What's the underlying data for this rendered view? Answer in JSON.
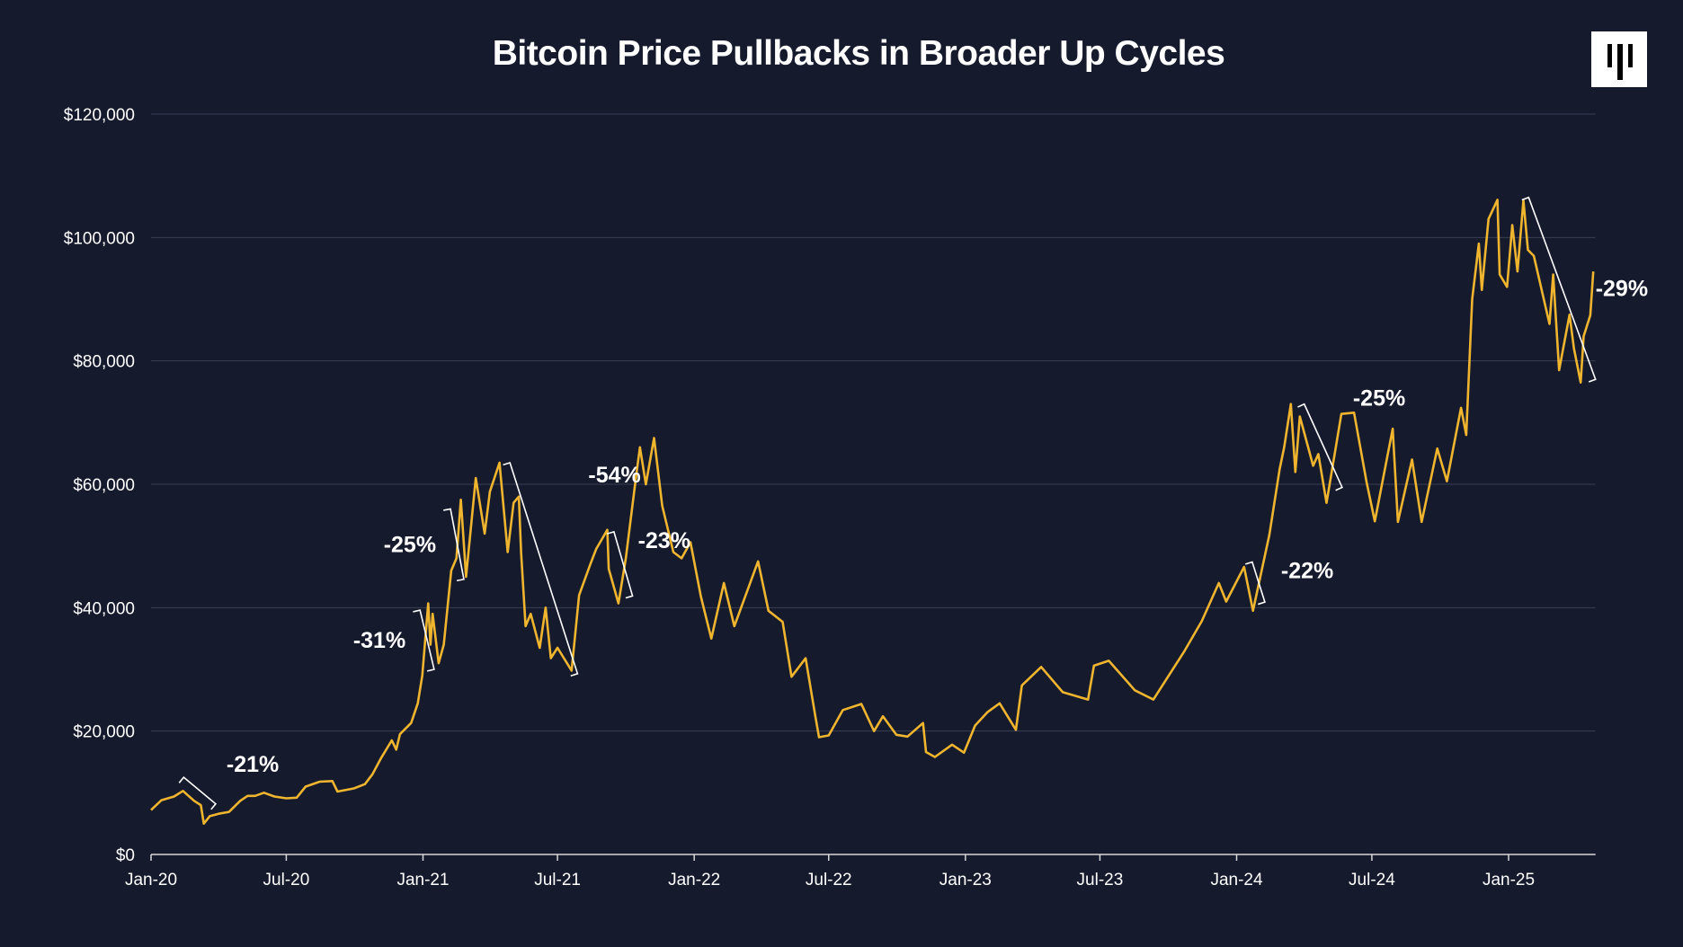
{
  "chart_data": {
    "type": "line",
    "title": "Bitcoin Price Pullbacks in Broader Up Cycles",
    "xlabel": "",
    "ylabel": "",
    "ylim": [
      0,
      120000
    ],
    "xlim": [
      "2020-01-01",
      "2025-04-28"
    ],
    "grid": true,
    "line_color": "#f0b52e",
    "background": "#151a2d",
    "y_ticks": [
      "$0",
      "$20,000",
      "$40,000",
      "$60,000",
      "$80,000",
      "$100,000",
      "$120,000"
    ],
    "y_tick_values": [
      0,
      20000,
      40000,
      60000,
      80000,
      100000,
      120000
    ],
    "x_ticks": [
      "Jan-20",
      "Jul-20",
      "Jan-21",
      "Jul-21",
      "Jan-22",
      "Jul-22",
      "Jan-23",
      "Jul-23",
      "Jan-24",
      "Jul-24",
      "Jan-25"
    ],
    "x_tick_dates": [
      "2020-01-01",
      "2020-07-01",
      "2021-01-01",
      "2021-07-01",
      "2022-01-01",
      "2022-07-01",
      "2023-01-01",
      "2023-07-01",
      "2024-01-01",
      "2024-07-01",
      "2025-01-01"
    ],
    "series": [
      {
        "points": [
          [
            "2020-01-01",
            7200
          ],
          [
            "2020-01-15",
            8800
          ],
          [
            "2020-02-01",
            9400
          ],
          [
            "2020-02-13",
            10300
          ],
          [
            "2020-02-28",
            8700
          ],
          [
            "2020-03-08",
            8000
          ],
          [
            "2020-03-12",
            5000
          ],
          [
            "2020-03-20",
            6200
          ],
          [
            "2020-04-01",
            6600
          ],
          [
            "2020-04-15",
            6900
          ],
          [
            "2020-04-30",
            8700
          ],
          [
            "2020-05-10",
            9500
          ],
          [
            "2020-05-20",
            9500
          ],
          [
            "2020-06-01",
            10000
          ],
          [
            "2020-06-15",
            9400
          ],
          [
            "2020-07-01",
            9100
          ],
          [
            "2020-07-15",
            9200
          ],
          [
            "2020-07-27",
            11000
          ],
          [
            "2020-08-15",
            11800
          ],
          [
            "2020-09-01",
            11900
          ],
          [
            "2020-09-08",
            10200
          ],
          [
            "2020-09-30",
            10700
          ],
          [
            "2020-10-15",
            11400
          ],
          [
            "2020-10-25",
            13000
          ],
          [
            "2020-11-05",
            15500
          ],
          [
            "2020-11-20",
            18500
          ],
          [
            "2020-11-26",
            17000
          ],
          [
            "2020-12-01",
            19500
          ],
          [
            "2020-12-16",
            21300
          ],
          [
            "2020-12-25",
            24500
          ],
          [
            "2020-12-31",
            29000
          ],
          [
            "2021-01-08",
            40700
          ],
          [
            "2021-01-11",
            34000
          ],
          [
            "2021-01-14",
            39000
          ],
          [
            "2021-01-22",
            31000
          ],
          [
            "2021-01-29",
            34000
          ],
          [
            "2021-02-08",
            46000
          ],
          [
            "2021-02-15",
            48000
          ],
          [
            "2021-02-21",
            57500
          ],
          [
            "2021-02-28",
            45000
          ],
          [
            "2021-03-13",
            61000
          ],
          [
            "2021-03-25",
            52000
          ],
          [
            "2021-04-01",
            58800
          ],
          [
            "2021-04-14",
            63500
          ],
          [
            "2021-04-25",
            49000
          ],
          [
            "2021-05-03",
            57000
          ],
          [
            "2021-05-10",
            58000
          ],
          [
            "2021-05-13",
            49000
          ],
          [
            "2021-05-19",
            37000
          ],
          [
            "2021-05-26",
            39000
          ],
          [
            "2021-06-07",
            33500
          ],
          [
            "2021-06-15",
            40000
          ],
          [
            "2021-06-22",
            31800
          ],
          [
            "2021-07-01",
            33500
          ],
          [
            "2021-07-20",
            29800
          ],
          [
            "2021-07-30",
            42000
          ],
          [
            "2021-08-14",
            47000
          ],
          [
            "2021-08-22",
            49500
          ],
          [
            "2021-09-06",
            52600
          ],
          [
            "2021-09-08",
            46300
          ],
          [
            "2021-09-21",
            40700
          ],
          [
            "2021-10-01",
            48000
          ],
          [
            "2021-10-15",
            61500
          ],
          [
            "2021-10-20",
            66000
          ],
          [
            "2021-10-28",
            60000
          ],
          [
            "2021-11-08",
            67500
          ],
          [
            "2021-11-19",
            56500
          ],
          [
            "2021-12-04",
            49000
          ],
          [
            "2021-12-15",
            48000
          ],
          [
            "2021-12-27",
            50600
          ],
          [
            "2022-01-10",
            41800
          ],
          [
            "2022-01-24",
            35000
          ],
          [
            "2022-02-10",
            44000
          ],
          [
            "2022-02-24",
            37000
          ],
          [
            "2022-03-28",
            47500
          ],
          [
            "2022-04-11",
            39500
          ],
          [
            "2022-04-30",
            37700
          ],
          [
            "2022-05-12",
            28800
          ],
          [
            "2022-05-31",
            31800
          ],
          [
            "2022-06-13",
            22400
          ],
          [
            "2022-06-18",
            19000
          ],
          [
            "2022-07-01",
            19300
          ],
          [
            "2022-07-20",
            23400
          ],
          [
            "2022-08-14",
            24400
          ],
          [
            "2022-08-31",
            20000
          ],
          [
            "2022-09-12",
            22400
          ],
          [
            "2022-09-30",
            19400
          ],
          [
            "2022-10-15",
            19100
          ],
          [
            "2022-11-05",
            21300
          ],
          [
            "2022-11-09",
            16600
          ],
          [
            "2022-11-21",
            15800
          ],
          [
            "2022-12-14",
            17800
          ],
          [
            "2022-12-30",
            16500
          ],
          [
            "2023-01-14",
            20900
          ],
          [
            "2023-01-31",
            23100
          ],
          [
            "2023-02-16",
            24500
          ],
          [
            "2023-03-10",
            20200
          ],
          [
            "2023-03-18",
            27400
          ],
          [
            "2023-04-13",
            30400
          ],
          [
            "2023-05-12",
            26300
          ],
          [
            "2023-06-15",
            25100
          ],
          [
            "2023-06-23",
            30600
          ],
          [
            "2023-07-13",
            31400
          ],
          [
            "2023-08-17",
            26600
          ],
          [
            "2023-09-11",
            25100
          ],
          [
            "2023-10-23",
            33000
          ],
          [
            "2023-11-15",
            37800
          ],
          [
            "2023-12-08",
            44000
          ],
          [
            "2023-12-18",
            41000
          ],
          [
            "2024-01-11",
            46600
          ],
          [
            "2024-01-23",
            39500
          ],
          [
            "2024-02-14",
            51800
          ],
          [
            "2024-02-28",
            62500
          ],
          [
            "2024-03-05",
            66000
          ],
          [
            "2024-03-14",
            73000
          ],
          [
            "2024-03-20",
            62000
          ],
          [
            "2024-03-26",
            71000
          ],
          [
            "2024-04-13",
            63000
          ],
          [
            "2024-04-20",
            64900
          ],
          [
            "2024-05-01",
            57000
          ],
          [
            "2024-05-21",
            71400
          ],
          [
            "2024-06-07",
            71600
          ],
          [
            "2024-06-24",
            60300
          ],
          [
            "2024-07-05",
            54000
          ],
          [
            "2024-07-29",
            69000
          ],
          [
            "2024-08-05",
            53900
          ],
          [
            "2024-08-24",
            64000
          ],
          [
            "2024-09-06",
            53900
          ],
          [
            "2024-09-27",
            65800
          ],
          [
            "2024-10-10",
            60500
          ],
          [
            "2024-10-29",
            72400
          ],
          [
            "2024-11-05",
            68000
          ],
          [
            "2024-11-13",
            90000
          ],
          [
            "2024-11-22",
            99000
          ],
          [
            "2024-11-26",
            91500
          ],
          [
            "2024-12-05",
            103000
          ],
          [
            "2024-12-17",
            106100
          ],
          [
            "2024-12-20",
            94000
          ],
          [
            "2024-12-30",
            92000
          ],
          [
            "2025-01-06",
            102000
          ],
          [
            "2025-01-13",
            94500
          ],
          [
            "2025-01-21",
            106000
          ],
          [
            "2025-01-27",
            98000
          ],
          [
            "2025-02-04",
            97000
          ],
          [
            "2025-02-25",
            86000
          ],
          [
            "2025-03-02",
            94000
          ],
          [
            "2025-03-10",
            78500
          ],
          [
            "2025-03-24",
            87500
          ],
          [
            "2025-03-30",
            82000
          ],
          [
            "2025-04-08",
            76500
          ],
          [
            "2025-04-12",
            84000
          ],
          [
            "2025-04-21",
            87400
          ],
          [
            "2025-04-25",
            94500
          ]
        ]
      }
    ],
    "annotations": [
      {
        "label": "-21%",
        "from": [
          "2020-02-14",
          12500
        ],
        "to": [
          "2020-03-28",
          8200
        ],
        "side": "right"
      },
      {
        "label": "-31%",
        "from": [
          "2020-12-28",
          39600
        ],
        "to": [
          "2021-01-16",
          30000
        ],
        "side": "left"
      },
      {
        "label": "-25%",
        "from": [
          "2021-02-07",
          56000
        ],
        "to": [
          "2021-02-25",
          44600
        ],
        "side": "left"
      },
      {
        "label": "-54%",
        "from": [
          "2021-04-28",
          63500
        ],
        "to": [
          "2021-07-28",
          29300
        ],
        "side": "right"
      },
      {
        "label": "-23%",
        "from": [
          "2021-09-15",
          52300
        ],
        "to": [
          "2021-10-10",
          41900
        ],
        "side": "right"
      },
      {
        "label": "-22%",
        "from": [
          "2024-01-22",
          47400
        ],
        "to": [
          "2024-02-08",
          40900
        ],
        "side": "right"
      },
      {
        "label": "-25%",
        "from": [
          "2024-04-01",
          73000
        ],
        "to": [
          "2024-05-22",
          59500
        ],
        "side": "right"
      },
      {
        "label": "-29%",
        "from": [
          "2025-01-28",
          106500
        ],
        "to": [
          "2025-04-28",
          77000
        ],
        "side": "right"
      }
    ]
  }
}
